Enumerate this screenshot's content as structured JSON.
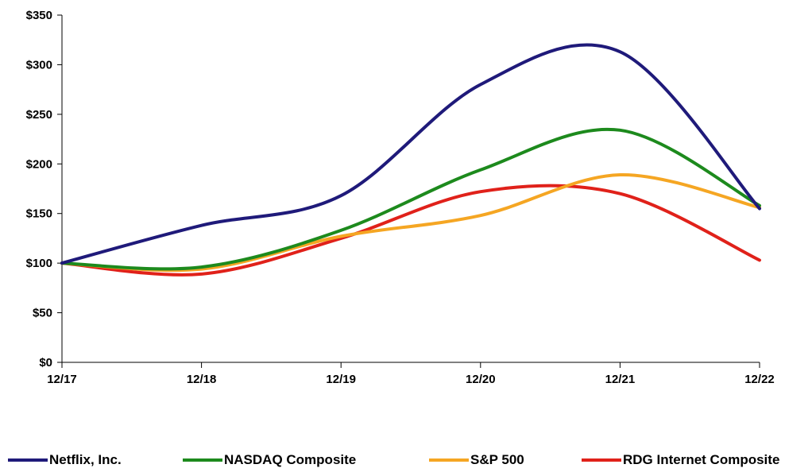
{
  "chart_data": {
    "type": "line",
    "categories": [
      "12/17",
      "12/18",
      "12/19",
      "12/20",
      "12/21",
      "12/22"
    ],
    "y_tick_labels": [
      "$0",
      "$50",
      "$100",
      "$150",
      "$200",
      "$250",
      "$300",
      "$350"
    ],
    "y_ticks": [
      0,
      50,
      100,
      150,
      200,
      250,
      300,
      350
    ],
    "ylim": [
      0,
      350
    ],
    "grid": false,
    "legend_position": "bottom",
    "title": "",
    "xlabel": "",
    "ylabel": "",
    "series": [
      {
        "name": "Netflix, Inc.",
        "color": "#1f1a7a",
        "values": [
          100,
          138,
          168,
          280,
          313,
          155
        ]
      },
      {
        "name": "NASDAQ Composite",
        "color": "#1d8a1d",
        "values": [
          100,
          96,
          133,
          194,
          234,
          158
        ]
      },
      {
        "name": "S&P 500",
        "color": "#f5a623",
        "values": [
          100,
          94,
          127,
          148,
          189,
          156
        ]
      },
      {
        "name": "RDG Internet Composite",
        "color": "#e0211a",
        "values": [
          100,
          89,
          125,
          172,
          170,
          103
        ]
      }
    ]
  }
}
